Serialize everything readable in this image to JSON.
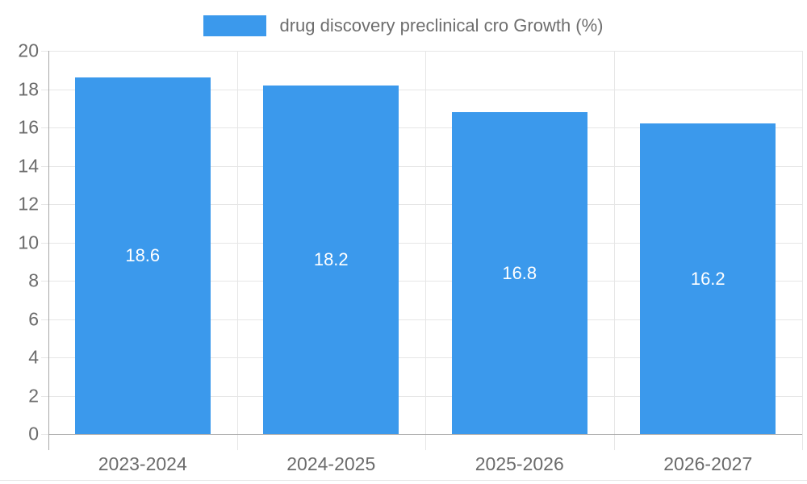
{
  "legend": {
    "label": "drug discovery preclinical cro Growth (%)"
  },
  "chart_data": {
    "type": "bar",
    "title": "drug discovery preclinical cro Growth (%)",
    "categories": [
      "2023-2024",
      "2024-2025",
      "2025-2026",
      "2026-2027"
    ],
    "values": [
      18.6,
      18.2,
      16.8,
      16.2
    ],
    "value_labels": [
      "18.6",
      "18.2",
      "16.8",
      "16.2"
    ],
    "xlabel": "",
    "ylabel": "",
    "ylim": [
      0,
      20
    ],
    "ytick_step": 2,
    "ytick_labels": [
      "0",
      "2",
      "4",
      "6",
      "8",
      "10",
      "12",
      "14",
      "16",
      "18",
      "20"
    ],
    "grid": true,
    "legend_position": "top-center",
    "value_label_position": "inside-center"
  },
  "colors": {
    "bar": "#3b99ec",
    "grid": "#e6e6e6",
    "axis": "#a8a8a8",
    "tick_text": "#6b6b6b",
    "legend_text": "#6e6e6e",
    "value_text": "#ffffff",
    "background": "#ffffff"
  }
}
